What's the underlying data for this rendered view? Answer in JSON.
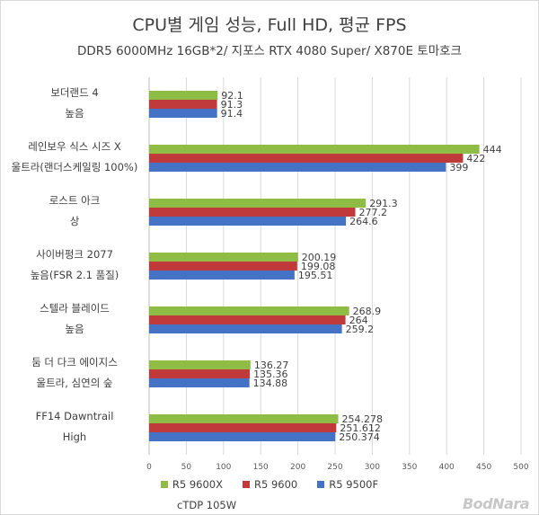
{
  "chart_data": {
    "type": "bar",
    "orientation": "horizontal",
    "title": "CPU별 게임 성능, Full HD, 평균 FPS",
    "subtitle": "DDR5 6000MHz 16GB*2/ 지포스  RTX 4080 Super/ X870E 토마호크",
    "categories": [
      {
        "line1": "보더랜드 4",
        "line2": "높음"
      },
      {
        "line1": "레인보우 식스 시즈 X",
        "line2": "울트라(랜더스케일링 100%)"
      },
      {
        "line1": "로스트 아크",
        "line2": "상"
      },
      {
        "line1": "사이버펑크 2077",
        "line2": "높음(FSR 2.1 품질)"
      },
      {
        "line1": "스텔라 블레이드",
        "line2": "높음"
      },
      {
        "line1": "둠 더 다크 에이지스",
        "line2": "울트라, 심연의 숲"
      },
      {
        "line1": "FF14 Dawntrail",
        "line2": "High"
      }
    ],
    "series": [
      {
        "name": "R5 9600X",
        "color": "#8fbc45",
        "values": [
          92.1,
          444,
          291.3,
          200.19,
          268.9,
          136.27,
          254.278
        ],
        "labels": [
          "92.1",
          "444",
          "291.3",
          "200.19",
          "268.9",
          "136.27",
          "254.278"
        ]
      },
      {
        "name": "R5 9600",
        "color": "#c0393b",
        "values": [
          91.3,
          422,
          277.2,
          199.08,
          264,
          135.36,
          251.612
        ],
        "labels": [
          "91.3",
          "422",
          "277.2",
          "199.08",
          "264",
          "135.36",
          "251.612"
        ]
      },
      {
        "name": "R5 9500F",
        "color": "#4472c4",
        "values": [
          91.4,
          399,
          264.6,
          195.51,
          259.2,
          134.88,
          250.374
        ],
        "labels": [
          "91.4",
          "399",
          "264.6",
          "195.51",
          "259.2",
          "134.88",
          "250.374"
        ]
      }
    ],
    "xlim": [
      0,
      500
    ],
    "xticks": [
      "0",
      "50",
      "100",
      "150",
      "200",
      "250",
      "300",
      "350",
      "400",
      "450",
      "500"
    ],
    "grid": true,
    "legend_position": "bottom"
  },
  "footnote": "cTDP 105W",
  "watermark": "BodNara"
}
